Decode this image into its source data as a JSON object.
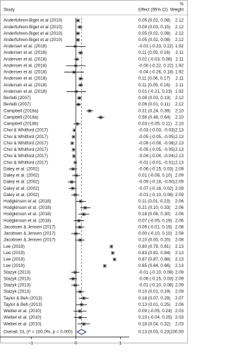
{
  "chart_data": {
    "type": "forest",
    "headers": {
      "study": "Study",
      "effect": "Effect (95% CI)",
      "weight_top": "%",
      "weight": "Weight"
    },
    "rows": [
      {
        "study": "Anderfuhren-Biget et al (2010)",
        "effect": 0.05,
        "lower": 0.02,
        "upper": 0.08,
        "label": "0.05 (0.02, 0.08)",
        "weight": 2.12,
        "weight_label": "2.12"
      },
      {
        "study": "Anderfuhren-Biget et al (2010)",
        "effect": 0.09,
        "lower": 0.03,
        "upper": 0.15,
        "label": "0.09 (0.03, 0.15)",
        "weight": 2.12,
        "weight_label": "2.12"
      },
      {
        "study": "Anderfuhren-Biget et al (2010)",
        "effect": 0.05,
        "lower": 0.02,
        "upper": 0.08,
        "label": "0.05 (0.02, 0.08)",
        "weight": 2.12,
        "weight_label": "2.12"
      },
      {
        "study": "Anderfuhren-Biget et al (2010)",
        "effect": 0.05,
        "lower": 0.02,
        "upper": 0.08,
        "label": "0.05 (0.02, 0.08)",
        "weight": 2.12,
        "weight_label": "2.12"
      },
      {
        "study": "Andersen et al. (2018)",
        "effect": -0.01,
        "lower": -0.23,
        "upper": 0.22,
        "label": "-0.01 (-0.23, 0.22)",
        "weight": 1.92,
        "weight_label": "1.92"
      },
      {
        "study": "Andersen et al. (2018)",
        "effect": 0.11,
        "lower": 0.05,
        "upper": 0.16,
        "label": "0.11 (0.05, 0.16)",
        "weight": 2.11,
        "weight_label": "2.11"
      },
      {
        "study": "Andersen et al. (2018)",
        "effect": 0.02,
        "lower": -0.03,
        "upper": 0.08,
        "label": "0.02 (-0.03, 0.08)",
        "weight": 2.11,
        "weight_label": "2.11"
      },
      {
        "study": "Andersen et al. (2018)",
        "effect": 0,
        "lower": -0.22,
        "upper": 0.22,
        "label": "-0.00 (-0.22, 0.22)",
        "weight": 1.92,
        "weight_label": "1.92"
      },
      {
        "study": "Andersen et al. (2018)",
        "effect": -0.04,
        "lower": -0.26,
        "upper": 0.18,
        "label": "-0.04 (-0.26, 0.18)",
        "weight": 1.92,
        "weight_label": "1.92"
      },
      {
        "study": "Andersen et al. (2018)",
        "effect": 0.11,
        "lower": 0.06,
        "upper": 0.17,
        "label": "0.11 (0.06, 0.17)",
        "weight": 2.11,
        "weight_label": "2.11"
      },
      {
        "study": "Andersen et al. (2018)",
        "effect": 0.11,
        "lower": 0.05,
        "upper": 0.16,
        "label": "0.11 (0.05, 0.16)",
        "weight": 2.11,
        "weight_label": "2.11"
      },
      {
        "study": "Andersen et al. (2018)",
        "effect": 0.01,
        "lower": -0.21,
        "upper": 0.23,
        "label": "0.01 (-0.21, 0.23)",
        "weight": 1.92,
        "weight_label": "1.92"
      },
      {
        "study": "Bertelli (2007)",
        "effect": 0.08,
        "lower": 0.03,
        "upper": 0.13,
        "label": "0.08 (0.03, 0.13)",
        "weight": 2.12,
        "weight_label": "2.12"
      },
      {
        "study": "Bertelli (2007)",
        "effect": 0.06,
        "lower": 0.01,
        "upper": 0.11,
        "label": "0.06 (0.01, 0.11)",
        "weight": 2.12,
        "weight_label": "2.12"
      },
      {
        "study": "Campbell (2018a)",
        "effect": 0.31,
        "lower": 0.24,
        "upper": 0.39,
        "label": "0.31 (0.24, 0.39)",
        "weight": 2.1,
        "weight_label": "2.10"
      },
      {
        "study": "Campbell (2018a)",
        "effect": 0.56,
        "lower": 0.48,
        "upper": 0.64,
        "label": "0.56 (0.48, 0.64)",
        "weight": 2.1,
        "weight_label": "2.10"
      },
      {
        "study": "Campbell (2018b)",
        "effect": 0.03,
        "lower": -0.05,
        "upper": 0.11,
        "label": "0.03 (-0.05, 0.11)",
        "weight": 2.1,
        "weight_label": "2.10"
      },
      {
        "study": "Choi & Whitford (2017)",
        "effect": -0.03,
        "lower": -0.03,
        "upper": -0.03,
        "label": "-0.03 (-0.03, -0.03)",
        "weight": 2.13,
        "weight_label": "2.13"
      },
      {
        "study": "Choi & Whitford (2017)",
        "effect": -0.05,
        "lower": -0.05,
        "upper": -0.05,
        "label": "-0.05 (-0.05, -0.05)",
        "weight": 2.13,
        "weight_label": "2.13"
      },
      {
        "study": "Choi & Whitford (2017)",
        "effect": -0.08,
        "lower": -0.08,
        "upper": -0.08,
        "label": "-0.08 (-0.08, -0.08)",
        "weight": 2.13,
        "weight_label": "2.13"
      },
      {
        "study": "Choi & Whitford (2017)",
        "effect": -0.05,
        "lower": -0.05,
        "upper": -0.05,
        "label": "-0.05 (-0.05, -0.05)",
        "weight": 2.13,
        "weight_label": "2.13"
      },
      {
        "study": "Choi & Whitford (2017)",
        "effect": -0.04,
        "lower": -0.04,
        "upper": -0.04,
        "label": "-0.04 (-0.04, -0.04)",
        "weight": 2.13,
        "weight_label": "2.13"
      },
      {
        "study": "Choi & Whitford (2017)",
        "effect": -0.01,
        "lower": -0.01,
        "upper": -0.01,
        "label": "-0.01 (-0.01, -0.01)",
        "weight": 2.13,
        "weight_label": "2.13"
      },
      {
        "study": "Daley et al. (2002)",
        "effect": -0.06,
        "lower": -0.15,
        "upper": 0.03,
        "label": "-0.06 (-0.15, 0.03)",
        "weight": 2.09,
        "weight_label": "2.09"
      },
      {
        "study": "Daley et al. (2002)",
        "effect": 0.01,
        "lower": -0.08,
        "upper": 0.1,
        "label": "0.01 (-0.08, 0.10)",
        "weight": 2.09,
        "weight_label": "2.09"
      },
      {
        "study": "Daley et al. (2002)",
        "effect": -0.09,
        "lower": -0.18,
        "upper": 0,
        "label": "-0.09 (-0.18, -0.00)",
        "weight": 2.09,
        "weight_label": "2.09"
      },
      {
        "study": "Daley et al. (2002)",
        "effect": -0.07,
        "lower": -0.16,
        "upper": 0.02,
        "label": "-0.07 (-0.16, 0.02)",
        "weight": 2.09,
        "weight_label": "2.09"
      },
      {
        "study": "Daley et al. (2002)",
        "effect": -0.01,
        "lower": -0.1,
        "upper": 0.08,
        "label": "-0.01 (-0.10, 0.08)",
        "weight": 2.09,
        "weight_label": "2.09"
      },
      {
        "study": "Hodgkinson et al. (2018)",
        "effect": 0.11,
        "lower": 0.01,
        "upper": 0.23,
        "label": "0.11 (0.01, 0.23)",
        "weight": 2.06,
        "weight_label": "2.06"
      },
      {
        "study": "Hodgkinson et al. (2018)",
        "effect": 0.21,
        "lower": 0.1,
        "upper": 0.33,
        "label": "0.21 (0.10, 0.33)",
        "weight": 2.06,
        "weight_label": "2.06"
      },
      {
        "study": "Hodgkinson et al. (2018)",
        "effect": 0.18,
        "lower": 0.06,
        "upper": 0.3,
        "label": "0.18 (0.06, 0.30)",
        "weight": 2.06,
        "weight_label": "2.06"
      },
      {
        "study": "Hodgkinson et al. (2018)",
        "effect": 0.07,
        "lower": -0.05,
        "upper": 0.19,
        "label": "0.07 (-0.05, 0.19)",
        "weight": 2.06,
        "weight_label": "2.06"
      },
      {
        "study": "Jacobsen & Jensen (2017)",
        "effect": 0.09,
        "lower": -0.01,
        "upper": 0.19,
        "label": "0.09 (-0.01, 0.19)",
        "weight": 2.08,
        "weight_label": "2.08"
      },
      {
        "study": "Jacobsen & Jensen (2017)",
        "effect": 0,
        "lower": -0.1,
        "upper": 0.1,
        "label": "0.00 (-0.10, 0.10)",
        "weight": 2.08,
        "weight_label": "2.08"
      },
      {
        "study": "Jacobsen & Jensen (2017)",
        "effect": 0.1,
        "lower": 0,
        "upper": 0.2,
        "label": "0.10 (0.00, 0.20)",
        "weight": 2.08,
        "weight_label": "2.08"
      },
      {
        "study": "Lee (2019)",
        "effect": 0.8,
        "lower": 0.79,
        "upper": 0.81,
        "label": "0.80 (0.79, 0.81)",
        "weight": 2.13,
        "weight_label": "2.13"
      },
      {
        "study": "Lee (2019)",
        "effect": 0.83,
        "lower": 0.82,
        "upper": 0.84,
        "label": "0.83 (0.82, 0.84)",
        "weight": 2.13,
        "weight_label": "2.13"
      },
      {
        "study": "Lee (2019)",
        "effect": 0.87,
        "lower": 0.87,
        "upper": 0.88,
        "label": "0.87 (0.87, 0.88)",
        "weight": 2.13,
        "weight_label": "2.13"
      },
      {
        "study": "Lee (2019)",
        "effect": 0.65,
        "lower": 0.64,
        "upper": 0.66,
        "label": "0.65 (0.64, 0.66)",
        "weight": 2.13,
        "weight_label": "2.13"
      },
      {
        "study": "Stazyk (2013)",
        "effect": -0.01,
        "lower": -0.1,
        "upper": 0.08,
        "label": "-0.01 (-0.10, 0.08)",
        "weight": 2.09,
        "weight_label": "2.09"
      },
      {
        "study": "Stazyk (2013)",
        "effect": -0.06,
        "lower": -0.15,
        "upper": 0.03,
        "label": "-0.06 (-0.15, 0.03)",
        "weight": 2.09,
        "weight_label": "2.09"
      },
      {
        "study": "Stazyk (2013)",
        "effect": -0.01,
        "lower": -0.1,
        "upper": 0.08,
        "label": "-0.01 (-0.10, 0.08)",
        "weight": 2.09,
        "weight_label": "2.09"
      },
      {
        "study": "Stazyk (2013)",
        "effect": 0.1,
        "lower": 0.01,
        "upper": 0.19,
        "label": "0.10 (0.01, 0.19)",
        "weight": 2.09,
        "weight_label": "2.09"
      },
      {
        "study": "Taylor & Beh (2013)",
        "effect": 0.18,
        "lower": 0.07,
        "upper": 0.29,
        "label": "0.18 (0.07, 0.29)",
        "weight": 2.07,
        "weight_label": "2.07"
      },
      {
        "study": "Taylor & Beh (2013)",
        "effect": 0.13,
        "lower": 0.01,
        "upper": 0.25,
        "label": "0.13 (0.01, 0.25)",
        "weight": 2.06,
        "weight_label": "2.06"
      },
      {
        "study": "Weibel et al. (2010)",
        "effect": 0.09,
        "lower": -0.05,
        "upper": 0.24,
        "label": "0.09 (-0.05, 0.24)",
        "weight": 2.03,
        "weight_label": "2.03"
      },
      {
        "study": "Weibel et al. (2010)",
        "effect": 0.1,
        "lower": -0.04,
        "upper": 0.25,
        "label": "0.10 (-0.04, 0.25)",
        "weight": 2.03,
        "weight_label": "2.03"
      },
      {
        "study": "Weibel et al. (2010)",
        "effect": 0.18,
        "lower": 0.04,
        "upper": 0.32,
        "label": "0.18 (0.04, 0.32)",
        "weight": 2.03,
        "weight_label": "2.03"
      }
    ],
    "overall": {
      "study": "Overall, DL (I² = 100.0%, p = 0.000)",
      "effect": 0.13,
      "lower": 0.03,
      "upper": 0.23,
      "label": "0.13 (0.03, 0.23)",
      "weight": 100,
      "weight_label": "100.00"
    },
    "xlim": [
      -1.7,
      1.2
    ],
    "xticks": [
      -1,
      0,
      1
    ],
    "colors": {
      "square": "#9a9a9a",
      "ci": "#000000",
      "overall_line": "#c0392b",
      "diamond": "#1f2a6b"
    }
  }
}
